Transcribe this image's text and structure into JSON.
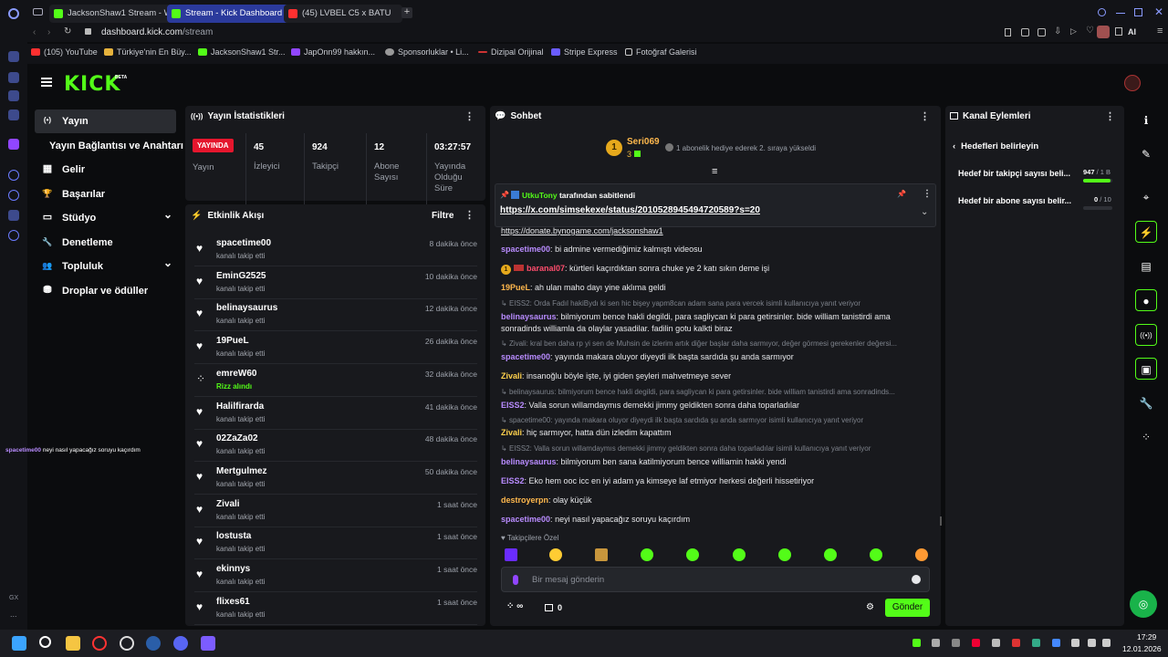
{
  "browser": {
    "tabs": [
      {
        "label": "JacksonShaw1 Stream - W",
        "active": false,
        "color": "#53fc18"
      },
      {
        "label": "Stream - Kick Dashboard",
        "active": true,
        "color": "#53fc18"
      },
      {
        "label": "(45) LVBEL C5 x BATU",
        "active": false,
        "color": "#ff3030"
      }
    ],
    "url_host": "dashboard.kick.com",
    "url_path": "/stream",
    "ai_label": "AI",
    "bookmarks": [
      "(105) YouTube",
      "Türkiye'nin En Büy...",
      "JacksonShaw1 Str...",
      "JapOnn99 hakkın...",
      "Sponsorluklar • Li...",
      "Dizipal Orijinal",
      "Stripe Express",
      "Fotoğraf Galerisi"
    ]
  },
  "kick": {
    "logo": "KICK",
    "beta": "BETA"
  },
  "sidenav": {
    "items": [
      {
        "label": "Yayın",
        "icon": "(•)"
      },
      {
        "label": "Yayın Bağlantısı ve Anahtarı",
        "icon": ""
      },
      {
        "label": "Gelir",
        "icon": "▦"
      },
      {
        "label": "Başarılar",
        "icon": "🏆"
      },
      {
        "label": "Stüdyo",
        "icon": "▭",
        "chevron": "⌄"
      },
      {
        "label": "Denetleme",
        "icon": "🔧"
      },
      {
        "label": "Topluluk",
        "icon": "👥",
        "chevron": "⌄"
      },
      {
        "label": "Droplar ve ödüller",
        "icon": "⛃"
      }
    ]
  },
  "overlay": {
    "user": "spacetime00",
    "text": "neyi nasıl yapacağız soruyu kaçırdım"
  },
  "rail_labels": {
    "gx": "GX",
    "dots": "..."
  },
  "stats": {
    "title": "Yayın İstatistikleri",
    "live_badge": "YAYINDA",
    "live_label": "Yayın",
    "cells": [
      {
        "value": "45",
        "label": "İzleyici"
      },
      {
        "value": "924",
        "label": "Takipçi"
      },
      {
        "value": "12",
        "label": "Abone Sayısı"
      },
      {
        "value": "03:27:57",
        "label": "Yayında Olduğu Süre"
      }
    ]
  },
  "activity": {
    "title": "Etkinlik Akışı",
    "filter": "Filtre",
    "items": [
      {
        "name": "spacetime00",
        "sub": "kanalı takip etti",
        "time": "8 dakika önce",
        "icon": "heart"
      },
      {
        "name": "EminG2525",
        "sub": "kanalı takip etti",
        "time": "10 dakika önce",
        "icon": "heart"
      },
      {
        "name": "belinaysaurus",
        "sub": "kanalı takip etti",
        "time": "12 dakika önce",
        "icon": "heart"
      },
      {
        "name": "19PueL",
        "sub": "kanalı takip etti",
        "time": "26 dakika önce",
        "icon": "heart"
      },
      {
        "name": "emreW60",
        "sub": "Rizz alındı",
        "time": "32 dakika önce",
        "icon": "rizz"
      },
      {
        "name": "Halilfirarda",
        "sub": "kanalı takip etti",
        "time": "41 dakika önce",
        "icon": "heart"
      },
      {
        "name": "02ZaZa02",
        "sub": "kanalı takip etti",
        "time": "48 dakika önce",
        "icon": "heart"
      },
      {
        "name": "Mertgulmez",
        "sub": "kanalı takip etti",
        "time": "50 dakika önce",
        "icon": "heart"
      },
      {
        "name": "Zivali",
        "sub": "kanalı takip etti",
        "time": "1 saat önce",
        "icon": "heart"
      },
      {
        "name": "lostusta",
        "sub": "kanalı takip etti",
        "time": "1 saat önce",
        "icon": "heart"
      },
      {
        "name": "ekinnys",
        "sub": "kanalı takip etti",
        "time": "1 saat önce",
        "icon": "heart"
      },
      {
        "name": "flixes61",
        "sub": "kanalı takip etti",
        "time": "1 saat önce",
        "icon": "heart"
      }
    ]
  },
  "chat": {
    "title": "Sohbet",
    "gift_user": "Seri069",
    "gift_count": "3",
    "gift_rank": "1",
    "gift_text": "1 abonelik hediye ederek 2. sıraya yükseldi",
    "pinned_by": "UtkuTony",
    "pinned_suffix": "tarafından sabitlendi",
    "pinned_link": "https://x.com/simsekexe/status/2010528945494720589?s=20",
    "donate_link": "https://donate.bynogame.com/jacksonshaw1",
    "messages": [
      {
        "user": "spacetime00",
        "color": "#b98cff",
        "text": "bi admine vermediğimiz kalmıştı videosu"
      },
      {
        "user": "baranal07",
        "color": "#ff4d6d",
        "text": "kürtleri kaçırdıktan sonra chuke ye 2 katı sıkın deme işi",
        "badge": "1"
      },
      {
        "user": "19PueL",
        "color": "#ffb84d",
        "text": "ah ulan maho dayı yine aklıma geldi"
      },
      {
        "reply": "EISS2: Orda Fadıl hakiBydı ki sen hic bişey yapm8can adam sana para vercek isimli kullanıcıya yanıt veriyor"
      },
      {
        "user": "belinaysaurus",
        "color": "#b98cff",
        "text": "bilmiyorum bence hakli degildi, para sagliycan ki para getirsinler. bide william tanistirdi ama sonradinds williamla da olaylar yasadilar. fadilin gotu kalkti biraz"
      },
      {
        "reply": "Zivali: kral ben daha rp yi sen de Muhsin de izlerim artık diğer başlar daha sarmıyor, değer görmesi gerekenler değersi..."
      },
      {
        "user": "spacetime00",
        "color": "#b98cff",
        "text": "yayında makara oluyor diyeydi ilk başta sardıda şu anda sarmıyor"
      },
      {
        "user": "Zivali",
        "color": "#ffd24d",
        "text": "insanoğlu böyle işte, iyi giden şeyleri mahvetmeye sever"
      },
      {
        "reply": "belinaysaurus: bilmiyorum bence hakli degildi, para sagliycan ki para getirsinler. bide william tanistirdi ama sonradinds..."
      },
      {
        "user": "EISS2",
        "color": "#b98cff",
        "text": "Valla sorun willamdaymıs demekki jimmy geldikten sonra daha toparladılar"
      },
      {
        "reply": "spacetime00: yayında makara oluyor diyeydi ilk başta sardıda şu anda sarmıyor isimli kullanıcıya yanıt veriyor"
      },
      {
        "user": "Zivali",
        "color": "#ffd24d",
        "text": "hiç sarmıyor, hatta dün izledim kapattım"
      },
      {
        "reply": "EISS2: Valla sorun willamdaymıs demekki jimmy geldikten sonra daha toparladılar isimli kullanıcıya yanıt veriyor"
      },
      {
        "user": "belinaysaurus",
        "color": "#b98cff",
        "text": "bilmiyorum ben sana katilmiyorum bence williamin hakki yendi"
      },
      {
        "user": "EISS2",
        "color": "#b98cff",
        "text": "Eko hem ooc icc en iyi adam ya kimseye laf etmiyor herkesi değerli hissetiriyor"
      },
      {
        "user": "destroyerpn",
        "color": "#ffb84d",
        "text": "olay küçük"
      },
      {
        "user": "spacetime00",
        "color": "#b98cff",
        "text": "neyi nasıl yapacağız soruyu kaçırdım"
      }
    ],
    "followers_only": "Takipçilere Özel",
    "input_placeholder": "Bir mesaj gönderin",
    "points": "0",
    "send": "Gönder"
  },
  "channel": {
    "title": "Kanal Eylemleri",
    "back_label": "Hedefleri belirleyin",
    "goals": [
      {
        "label": "Hedef bir takipçi sayısı beli...",
        "value": "947",
        "target": "/ 1 B",
        "progress": 0.947
      },
      {
        "label": "Hedef bir abone sayısı belir...",
        "value": "0",
        "target": "/ 10",
        "progress": 0
      }
    ]
  },
  "taskbar": {
    "time": "17:29",
    "date": "12.01.2026"
  },
  "colors": {
    "accent": "#53fc18",
    "live": "#e5162d"
  }
}
